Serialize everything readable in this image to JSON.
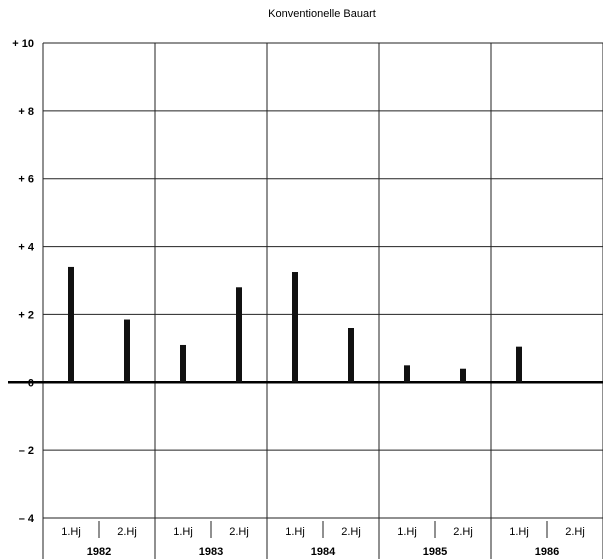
{
  "chart_data": {
    "type": "bar",
    "title": "Konventionelle Bauart",
    "xlabel": "",
    "ylabel": "",
    "ylim": [
      -4,
      10
    ],
    "yticks": [
      10,
      8,
      6,
      4,
      2,
      0,
      -2,
      -4
    ],
    "ytick_labels": [
      "+ 10",
      "+ 8",
      "+ 6",
      "+ 4",
      "+ 2",
      "0",
      "– 2",
      "– 4"
    ],
    "grid": true,
    "years": [
      "1982",
      "1983",
      "1984",
      "1985",
      "1986"
    ],
    "categories": [
      "1.Hj",
      "2.Hj",
      "1.Hj",
      "2.Hj",
      "1.Hj",
      "2.Hj",
      "1.Hj",
      "2.Hj",
      "1.Hj",
      "2.Hj"
    ],
    "values": [
      3.4,
      1.85,
      1.1,
      2.8,
      3.25,
      1.6,
      0.5,
      0.4,
      1.05,
      null
    ],
    "colors": {
      "bar": "#111111",
      "grid": "#222222",
      "background": "#ffffff"
    }
  }
}
